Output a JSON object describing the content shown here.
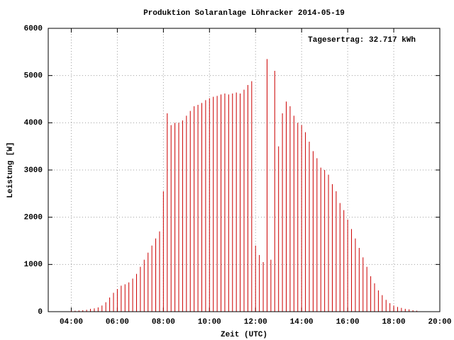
{
  "chart_data": {
    "type": "bar",
    "title": "Produktion Solaranlage Löhracker 2014-05-19",
    "annotation": "Tagesertrag: 32.717 kWh",
    "xlabel": "Zeit (UTC)",
    "ylabel": "Leistung [W]",
    "color": "#cc0000",
    "grid": true,
    "xlim": [
      180,
      1200
    ],
    "xticks": [
      {
        "value": 240,
        "label": "04:00"
      },
      {
        "value": 360,
        "label": "06:00"
      },
      {
        "value": 480,
        "label": "08:00"
      },
      {
        "value": 600,
        "label": "10:00"
      },
      {
        "value": 720,
        "label": "12:00"
      },
      {
        "value": 840,
        "label": "14:00"
      },
      {
        "value": 960,
        "label": "16:00"
      },
      {
        "value": 1080,
        "label": "18:00"
      },
      {
        "value": 1200,
        "label": "20:00"
      }
    ],
    "ylim": [
      0,
      6000
    ],
    "yticks": [
      0,
      1000,
      2000,
      3000,
      4000,
      5000,
      6000
    ],
    "x": [
      240,
      250,
      260,
      270,
      280,
      290,
      300,
      310,
      320,
      330,
      340,
      350,
      360,
      370,
      380,
      390,
      400,
      410,
      420,
      430,
      440,
      450,
      460,
      470,
      480,
      490,
      500,
      510,
      520,
      530,
      540,
      550,
      560,
      570,
      580,
      590,
      600,
      610,
      620,
      630,
      640,
      650,
      660,
      670,
      680,
      690,
      700,
      710,
      720,
      730,
      740,
      750,
      760,
      770,
      780,
      790,
      800,
      810,
      820,
      830,
      840,
      850,
      860,
      870,
      880,
      890,
      900,
      910,
      920,
      930,
      940,
      950,
      960,
      970,
      980,
      990,
      1000,
      1010,
      1020,
      1030,
      1040,
      1050,
      1060,
      1070,
      1080,
      1090,
      1100,
      1110,
      1120,
      1130,
      1140
    ],
    "values": [
      20,
      20,
      25,
      30,
      40,
      60,
      70,
      90,
      130,
      200,
      300,
      400,
      480,
      550,
      580,
      620,
      700,
      800,
      950,
      1100,
      1250,
      1400,
      1550,
      1700,
      2550,
      4200,
      3950,
      4000,
      4000,
      4050,
      4150,
      4250,
      4350,
      4380,
      4420,
      4480,
      4520,
      4550,
      4570,
      4600,
      4620,
      4600,
      4620,
      4640,
      4620,
      4700,
      4800,
      4880,
      1400,
      1200,
      1050,
      5350,
      1100,
      5100,
      3500,
      4200,
      4450,
      4350,
      4150,
      4000,
      3950,
      3800,
      3600,
      3400,
      3250,
      3050,
      3000,
      2900,
      2700,
      2550,
      2300,
      2150,
      1950,
      1750,
      1550,
      1350,
      1150,
      950,
      750,
      600,
      450,
      350,
      250,
      180,
      130,
      100,
      80,
      60,
      50,
      30,
      20
    ]
  }
}
